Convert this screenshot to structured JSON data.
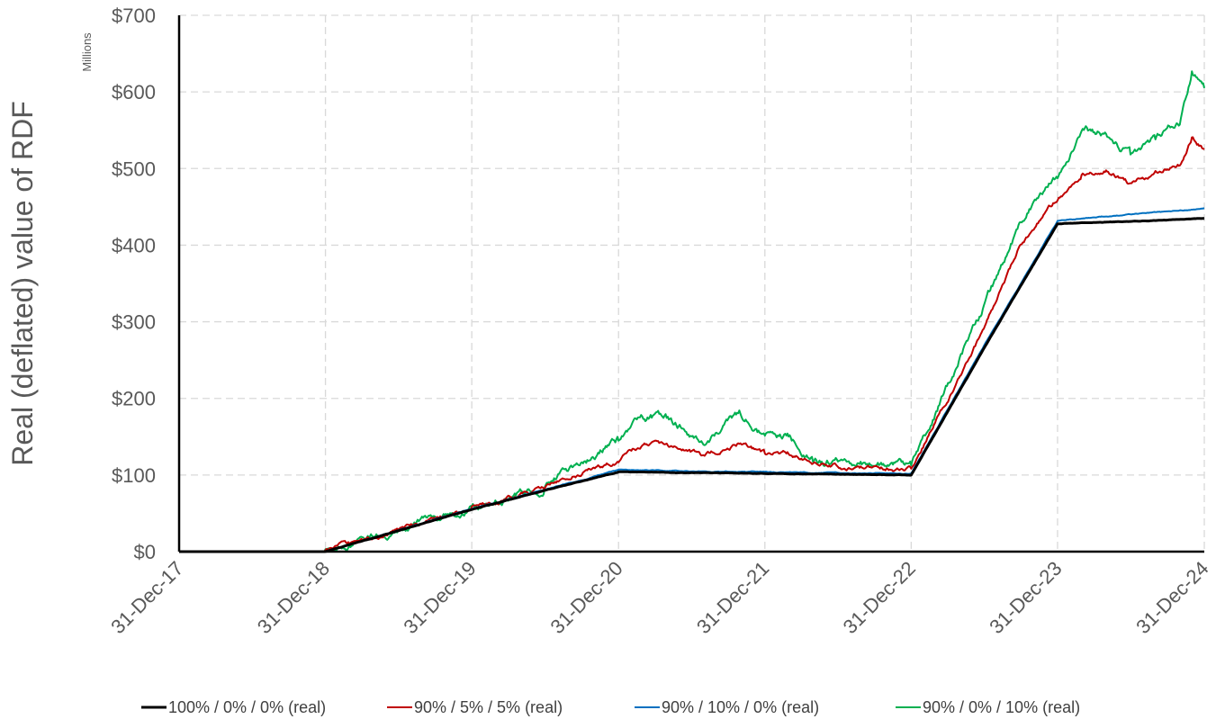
{
  "chart_data": {
    "type": "line",
    "title": "",
    "ylabel": "Real (deflated) value of RDF",
    "xlabel": "",
    "y_units": "Millions",
    "ylim": [
      0,
      700
    ],
    "yticks": [
      "$0",
      "$100",
      "$200",
      "$300",
      "$400",
      "$500",
      "$600",
      "$700"
    ],
    "ytick_values": [
      0,
      100,
      200,
      300,
      400,
      500,
      600,
      700
    ],
    "x_categories": [
      "31-Dec-17",
      "31-Dec-18",
      "31-Dec-19",
      "31-Dec-20",
      "31-Dec-21",
      "31-Dec-22",
      "31-Dec-23",
      "31-Dec-24"
    ],
    "grid": true,
    "legend_position": "bottom",
    "series": [
      {
        "name": "100% / 0% / 0% (real)",
        "color": "#000000",
        "x": [
          "31-Dec-17",
          "31-Dec-18",
          "31-Dec-19",
          "30-Jun-20",
          "31-Dec-20",
          "30-Jun-21",
          "31-Dec-21",
          "30-Jun-22",
          "31-Dec-22",
          "30-Jun-23",
          "31-Dec-23",
          "30-Jun-24",
          "31-Dec-24"
        ],
        "values": [
          0,
          0,
          55,
          80,
          104,
          103,
          102,
          101,
          100,
          265,
          428,
          431,
          435
        ]
      },
      {
        "name": "90% / 5% / 5% (real)",
        "color": "#c00000",
        "x": [
          "31-Dec-17",
          "31-Dec-18",
          "31-Dec-19",
          "30-Jun-20",
          "31-Jul-20",
          "31-Dec-20",
          "28-Feb-21",
          "30-Apr-21",
          "31-Jul-21",
          "31-Oct-21",
          "31-Dec-21",
          "28-Feb-22",
          "30-Apr-22",
          "31-Jul-22",
          "31-Dec-22",
          "30-Jun-23",
          "30-Sep-23",
          "31-Dec-23",
          "29-Feb-24",
          "30-Apr-24",
          "30-Jun-24",
          "31-Aug-24",
          "31-Oct-24",
          "30-Nov-24",
          "31-Dec-24"
        ],
        "values": [
          0,
          0,
          57,
          82,
          92,
          118,
          140,
          140,
          125,
          142,
          127,
          128,
          116,
          110,
          107,
          290,
          400,
          460,
          490,
          497,
          480,
          495,
          505,
          540,
          525
        ]
      },
      {
        "name": "90% / 10% / 0% (real)",
        "color": "#0070c0",
        "x": [
          "31-Dec-17",
          "31-Dec-18",
          "31-Dec-19",
          "30-Jun-20",
          "31-Dec-20",
          "30-Jun-21",
          "31-Dec-21",
          "30-Jun-22",
          "31-Dec-22",
          "30-Jun-23",
          "31-Dec-23",
          "30-Jun-24",
          "31-Dec-24"
        ],
        "values": [
          0,
          0,
          56,
          81,
          107,
          105,
          104,
          103,
          102,
          268,
          432,
          440,
          448
        ]
      },
      {
        "name": "90% / 0% / 10% (real)",
        "color": "#00b050",
        "x": [
          "31-Dec-17",
          "31-Dec-18",
          "31-Dec-19",
          "30-Jun-20",
          "31-Jul-20",
          "31-Dec-20",
          "28-Feb-21",
          "30-Apr-21",
          "31-Jul-21",
          "31-Oct-21",
          "31-Dec-21",
          "28-Feb-22",
          "30-Apr-22",
          "31-Jul-22",
          "31-Dec-22",
          "30-Jun-23",
          "30-Sep-23",
          "31-Dec-23",
          "29-Feb-24",
          "30-Apr-24",
          "30-Jun-24",
          "31-Aug-24",
          "31-Oct-24",
          "30-Nov-24",
          "31-Dec-24"
        ],
        "values": [
          0,
          0,
          58,
          84,
          97,
          145,
          175,
          175,
          140,
          180,
          150,
          152,
          120,
          115,
          112,
          320,
          430,
          490,
          550,
          545,
          520,
          540,
          560,
          630,
          605
        ]
      }
    ]
  }
}
